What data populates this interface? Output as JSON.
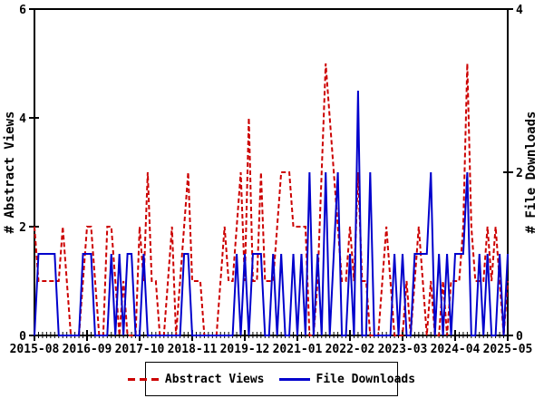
{
  "axes": {
    "left_label": "# Abstract Views",
    "right_label": "# File Downloads",
    "left_ticks": [
      0,
      2,
      4,
      6
    ],
    "right_ticks": [
      0,
      2,
      4
    ],
    "left_max": 6,
    "right_max": 4,
    "x_tick_labels": [
      "2015-08",
      "2016-09",
      "2017-10",
      "2018-11",
      "2019-12",
      "2021-01",
      "2022-02",
      "2023-03",
      "2024-04",
      "2025-05"
    ],
    "x_tick_month_indices": [
      0,
      13,
      26,
      39,
      52,
      65,
      78,
      91,
      104,
      117
    ]
  },
  "colors": {
    "abstract_views": "#cc0000",
    "file_downloads": "#0000cc",
    "axis": "#000000",
    "background": "#ffffff"
  },
  "legend": {
    "items": [
      {
        "label": "Abstract Views",
        "style": "dashed",
        "color": "#cc0000"
      },
      {
        "label": "File Downloads",
        "style": "solid",
        "color": "#0000cc"
      }
    ]
  },
  "chart_data": {
    "type": "line",
    "title": "",
    "x_unit": "month",
    "x_start": "2015-08",
    "x_end": "2025-05",
    "n_points": 118,
    "grid": false,
    "legend_position": "bottom-center",
    "ylim_left": [
      0,
      6
    ],
    "ylim_right": [
      0,
      4
    ],
    "series": [
      {
        "name": "Abstract Views",
        "axis": "left",
        "line": "dashed",
        "color": "#cc0000",
        "values": [
          2,
          1,
          1,
          1,
          1,
          1,
          1,
          2,
          1,
          0,
          0,
          0,
          1,
          2,
          2,
          1,
          0,
          0,
          2,
          2,
          1,
          0,
          1,
          0,
          0,
          0,
          2,
          1,
          3,
          1,
          1,
          0,
          0,
          1,
          2,
          0,
          1,
          2,
          3,
          1,
          1,
          1,
          0,
          0,
          0,
          0,
          1,
          2,
          1,
          1,
          2,
          3,
          1,
          4,
          1,
          1,
          3,
          1,
          1,
          1,
          2,
          3,
          3,
          3,
          2,
          2,
          2,
          2,
          0,
          0,
          1,
          3,
          5,
          4,
          3,
          2,
          1,
          1,
          2,
          1,
          3,
          1,
          1,
          0,
          0,
          0,
          1,
          2,
          1,
          0,
          0,
          0,
          1,
          0,
          1,
          2,
          1,
          0,
          1,
          0,
          0,
          1,
          0,
          1,
          1,
          1,
          2,
          5,
          2,
          1,
          1,
          1,
          2,
          1,
          2,
          1,
          0,
          1
        ]
      },
      {
        "name": "File Downloads",
        "axis": "right",
        "line": "solid",
        "color": "#0000cc",
        "values": [
          0,
          1,
          1,
          1,
          1,
          1,
          0,
          0,
          0,
          0,
          0,
          0,
          1,
          1,
          1,
          0,
          0,
          0,
          0,
          1,
          0,
          1,
          0,
          1,
          1,
          0,
          0,
          1,
          0,
          0,
          0,
          0,
          0,
          0,
          0,
          0,
          0,
          1,
          1,
          0,
          0,
          0,
          0,
          0,
          0,
          0,
          0,
          0,
          0,
          0,
          1,
          0,
          1,
          0,
          1,
          1,
          1,
          0,
          0,
          1,
          0,
          1,
          0,
          0,
          1,
          0,
          1,
          0,
          2,
          0,
          1,
          0,
          2,
          0,
          1,
          2,
          0,
          0,
          1,
          0,
          3,
          0,
          0,
          2,
          0,
          0,
          0,
          0,
          0,
          1,
          0,
          1,
          0,
          0,
          1,
          1,
          1,
          1,
          2,
          0,
          1,
          0,
          1,
          0,
          1,
          1,
          1,
          2,
          0,
          0,
          1,
          0,
          1,
          0,
          0,
          1,
          0,
          1
        ]
      }
    ]
  }
}
